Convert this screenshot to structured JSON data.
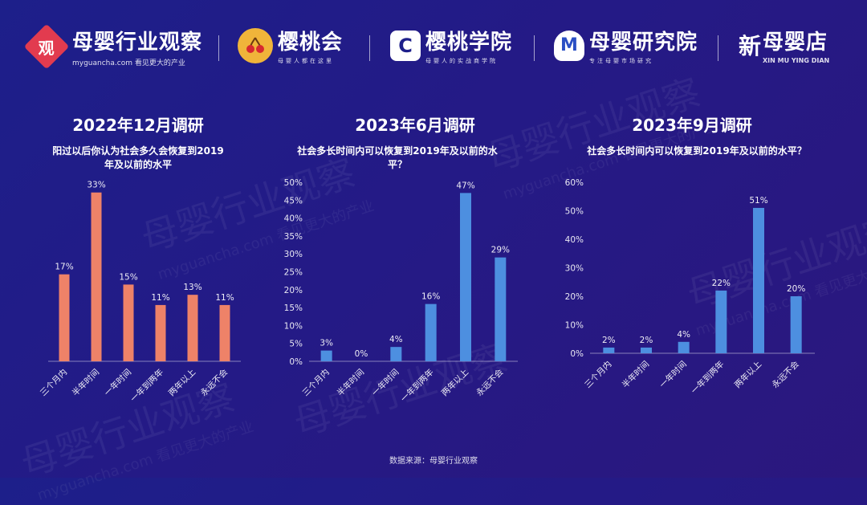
{
  "header": {
    "logos": [
      {
        "badge": "观",
        "name": "母婴行业观察",
        "sub": "myguancha.com 看见更大的产业"
      },
      {
        "name": "樱桃会",
        "sub": "母婴人都在这里"
      },
      {
        "badge": "C",
        "name": "樱桃学院",
        "sub": "母婴人的实战商学院"
      },
      {
        "badge": "M",
        "name": "母婴研究院",
        "sub": "专注母婴市场研究"
      },
      {
        "badge": "新",
        "name": "母婴店",
        "sub": "XIN MU YING DIAN"
      }
    ]
  },
  "watermark": {
    "text": "母婴行业观察",
    "url": "myguancha.com 看见更大的产业"
  },
  "colors": {
    "panel1": "#ee8268",
    "panel2": "#4d8fe0",
    "panel3": "#4d8fe0"
  },
  "chart_data": [
    {
      "type": "bar",
      "title": "2022年12月调研",
      "subtitle": "阳过以后你认为社会多久会恢复到2019年及以前的水平",
      "categories": [
        "三个月内",
        "半年时间",
        "一年时间",
        "一年到两年",
        "两年以上",
        "永远不会"
      ],
      "values": [
        17,
        33,
        15,
        11,
        13,
        11
      ],
      "value_labels": [
        "17%",
        "33%",
        "15%",
        "11%",
        "13%",
        "11%"
      ],
      "ylim": [
        0,
        35
      ],
      "y_axis": false
    },
    {
      "type": "bar",
      "title": "2023年6月调研",
      "subtitle": "社会多长时间内可以恢复到2019年及以前的水平？",
      "categories": [
        "三个月内",
        "半年时间",
        "一年时间",
        "一年到两年",
        "两年以上",
        "永远不会"
      ],
      "values": [
        3,
        0,
        4,
        16,
        47,
        29
      ],
      "value_labels": [
        "3%",
        "0%",
        "4%",
        "16%",
        "47%",
        "29%"
      ],
      "ylim": [
        0,
        50
      ],
      "yticks": [
        "0%",
        "5%",
        "10%",
        "15%",
        "20%",
        "25%",
        "30%",
        "35%",
        "40%",
        "45%",
        "50%"
      ],
      "y_axis": true
    },
    {
      "type": "bar",
      "title": "2023年9月调研",
      "subtitle": "社会多长时间内可以恢复到2019年及以前的水平？",
      "categories": [
        "三个月内",
        "半年时间",
        "一年时间",
        "一年到两年",
        "两年以上",
        "永远不会"
      ],
      "values": [
        2,
        2,
        4,
        22,
        51,
        20
      ],
      "value_labels": [
        "2%",
        "2%",
        "4%",
        "22%",
        "51%",
        "20%"
      ],
      "ylim": [
        0,
        60
      ],
      "yticks": [
        "0%",
        "10%",
        "20%",
        "30%",
        "40%",
        "50%",
        "60%"
      ],
      "y_axis": true
    }
  ],
  "source": "数据来源：母婴行业观察"
}
